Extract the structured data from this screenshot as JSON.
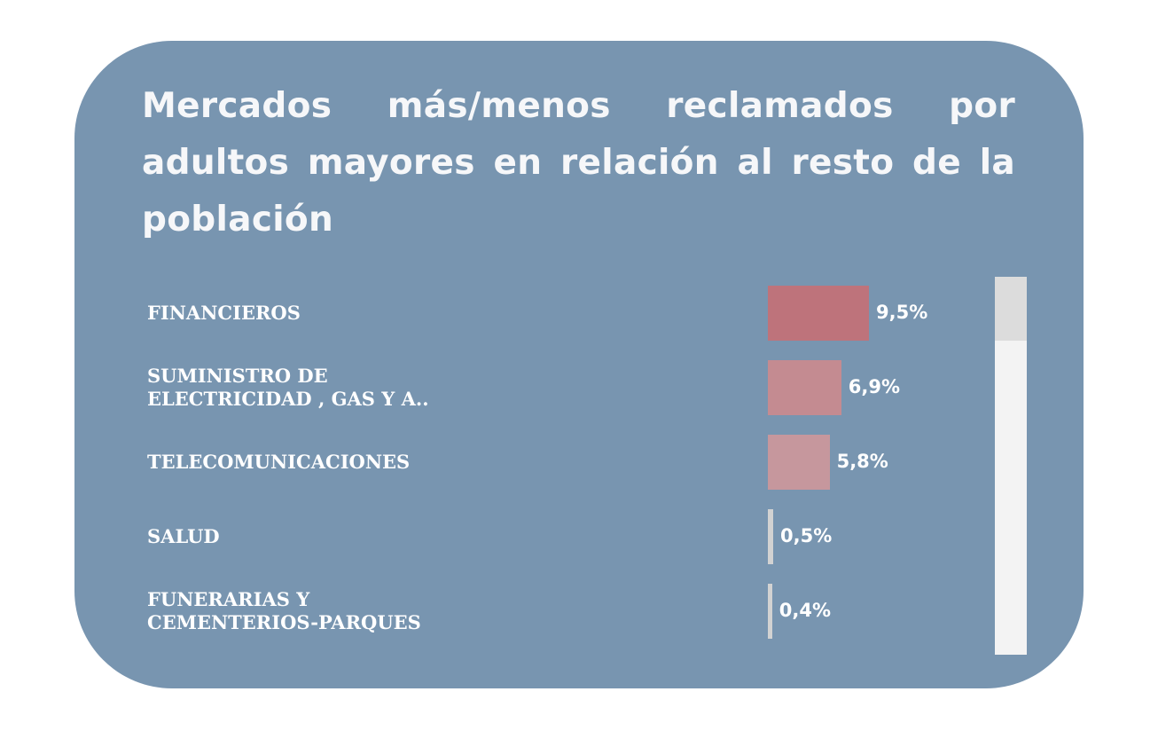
{
  "chart_data": {
    "type": "bar",
    "orientation": "horizontal",
    "title": "Mercados más/menos reclamados por adultos mayores en relación al resto de la población",
    "categories": [
      [
        "FINANCIEROS"
      ],
      [
        "SUMINISTRO DE",
        "ELECTRICIDAD , GAS Y A.."
      ],
      [
        "TELECOMUNICACIONES"
      ],
      [
        "SALUD"
      ],
      [
        "FUNERARIAS Y",
        "CEMENTERIOS-PARQUES"
      ]
    ],
    "values": [
      9.5,
      6.9,
      5.8,
      0.5,
      0.4
    ],
    "value_labels": [
      "9,5%",
      "6,9%",
      "5,8%",
      "0,5%",
      "0,4%"
    ],
    "bar_colors": [
      "#be737b",
      "#c48b91",
      "#c6979d",
      "#d2d2d2",
      "#d2d2d2"
    ],
    "xlim": [
      0,
      9.5
    ],
    "grid": false,
    "legend": "none"
  },
  "colors": {
    "card_background": "#7895b0",
    "title_text": "#f6f7f9",
    "label_text": "#ffffff",
    "scroll_track": "#f3f3f3",
    "scroll_thumb": "#dcdcdc"
  }
}
